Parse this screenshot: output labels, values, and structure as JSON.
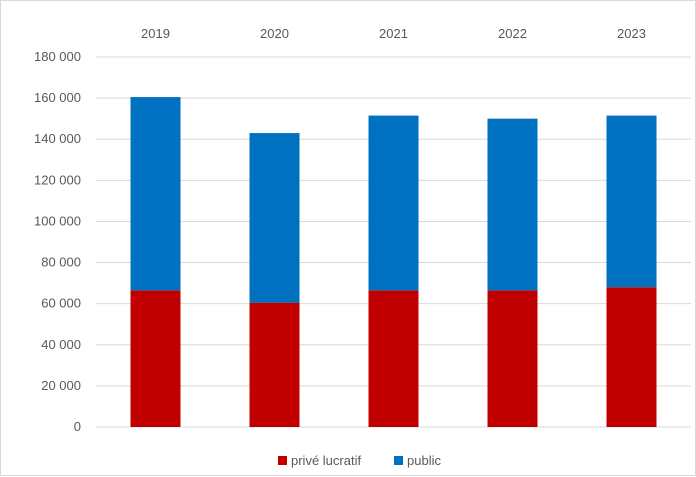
{
  "chart_data": {
    "type": "bar",
    "stacked": true,
    "categories": [
      "2019",
      "2020",
      "2021",
      "2022",
      "2023"
    ],
    "category_axis_position": "top",
    "series": [
      {
        "name": "privé lucratif",
        "color": "#c00000",
        "values": [
          66500,
          60500,
          66500,
          66500,
          68000
        ]
      },
      {
        "name": "public",
        "color": "#0070c0",
        "values": [
          94000,
          82500,
          85000,
          83500,
          83500
        ]
      }
    ],
    "ylim": [
      0,
      180000
    ],
    "y_ticks": [
      "0",
      "20 000",
      "40 000",
      "60 000",
      "80 000",
      "100 000",
      "120 000",
      "140 000",
      "160 000",
      "180 000"
    ],
    "grid": true,
    "legend_position": "bottom"
  }
}
